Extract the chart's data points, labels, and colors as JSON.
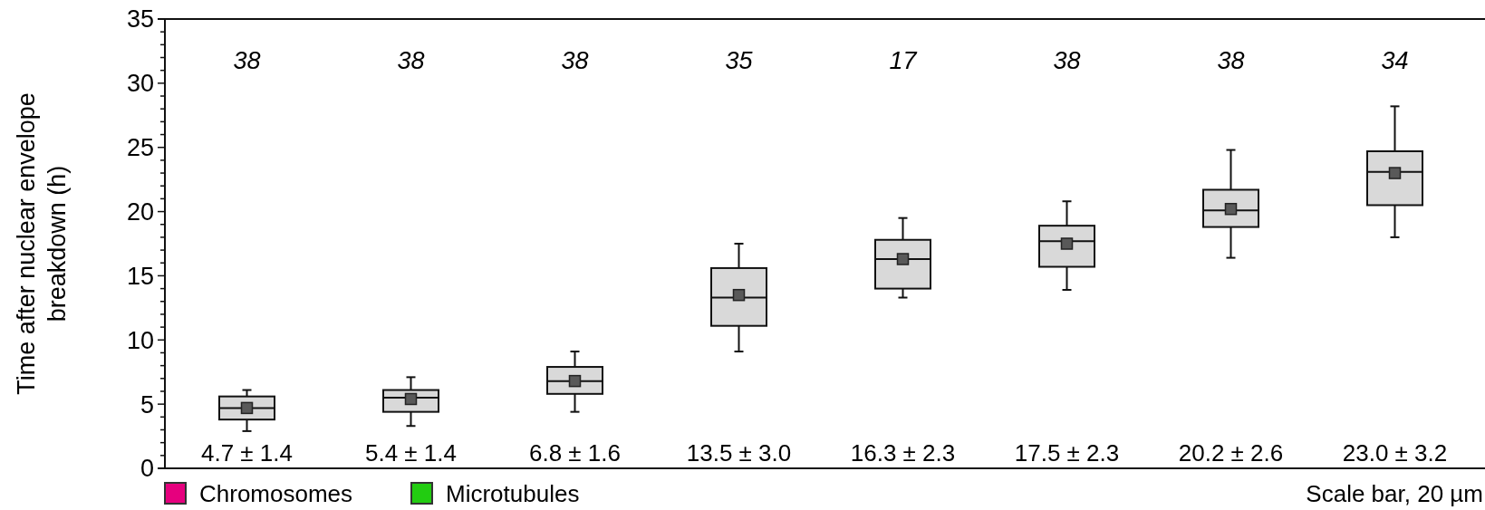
{
  "chart_data": {
    "type": "box",
    "ylabel": "Time after nuclear envelope breakdown (h)",
    "categories": [
      null,
      null,
      null,
      null,
      null,
      null,
      null,
      null
    ],
    "color": "#d9d9d9",
    "marker": "square",
    "boxes": [
      {
        "low": 2.9,
        "q1": 3.8,
        "median": 4.7,
        "q3": 5.6,
        "high": 6.1,
        "mean": 4.7
      },
      {
        "low": 3.3,
        "q1": 4.4,
        "median": 5.5,
        "q3": 6.1,
        "high": 7.1,
        "mean": 5.4
      },
      {
        "low": 4.4,
        "q1": 5.8,
        "median": 6.8,
        "q3": 7.9,
        "high": 9.1,
        "mean": 6.8
      },
      {
        "low": 9.1,
        "q1": 11.1,
        "median": 13.3,
        "q3": 15.6,
        "high": 17.5,
        "mean": 13.5
      },
      {
        "low": 13.3,
        "q1": 14.0,
        "median": 16.3,
        "q3": 17.8,
        "high": 19.5,
        "mean": 16.3
      },
      {
        "low": 13.9,
        "q1": 15.7,
        "median": 17.7,
        "q3": 18.9,
        "high": 20.8,
        "mean": 17.5
      },
      {
        "low": 16.4,
        "q1": 18.8,
        "median": 20.1,
        "q3": 21.7,
        "high": 24.8,
        "mean": 20.2
      },
      {
        "low": 18.0,
        "q1": 20.5,
        "median": 23.1,
        "q3": 24.7,
        "high": 28.2,
        "mean": 23.0
      }
    ],
    "ylim": [
      0,
      35
    ],
    "yticks": [
      0,
      {
        "value": 1,
        "label": null
      },
      {
        "value": 2,
        "label": null
      },
      {
        "value": 3,
        "label": null
      },
      {
        "value": 4,
        "label": null
      },
      5,
      {
        "value": 6,
        "label": null
      },
      {
        "value": 7,
        "label": null
      },
      {
        "value": 8,
        "label": null
      },
      {
        "value": 9,
        "label": null
      },
      10,
      {
        "value": 11,
        "label": null
      },
      {
        "value": 12,
        "label": null
      },
      {
        "value": 13,
        "label": null
      },
      {
        "value": 14,
        "label": null
      },
      15,
      {
        "value": 16,
        "label": null
      },
      {
        "value": 17,
        "label": null
      },
      {
        "value": 18,
        "label": null
      },
      {
        "value": 19,
        "label": null
      },
      20,
      {
        "value": 21,
        "label": null
      },
      {
        "value": 22,
        "label": null
      },
      {
        "value": 23,
        "label": null
      },
      {
        "value": 24,
        "label": null
      },
      25,
      {
        "value": 26,
        "label": null
      },
      {
        "value": 27,
        "label": null
      },
      {
        "value": 28,
        "label": null
      },
      {
        "value": 29,
        "label": null
      },
      30,
      {
        "value": 31,
        "label": null
      },
      {
        "value": 32,
        "label": null
      },
      {
        "value": 33,
        "label": null
      },
      {
        "value": 34,
        "label": null
      },
      35
    ],
    "annotations": [
      "38",
      "38",
      "38",
      "35",
      "17",
      "38",
      "38",
      "34",
      "4.7 ± 1.4",
      "5.4 ± 1.4",
      "6.8 ± 1.6",
      "13.5 ± 3.0",
      "16.3 ± 2.3",
      "17.5 ± 2.3",
      "20.2 ± 2.6",
      "23.0 ± 3.2",
      "Chromosomes",
      "Microtubules",
      "Scale bar, 20 µm"
    ]
  }
}
